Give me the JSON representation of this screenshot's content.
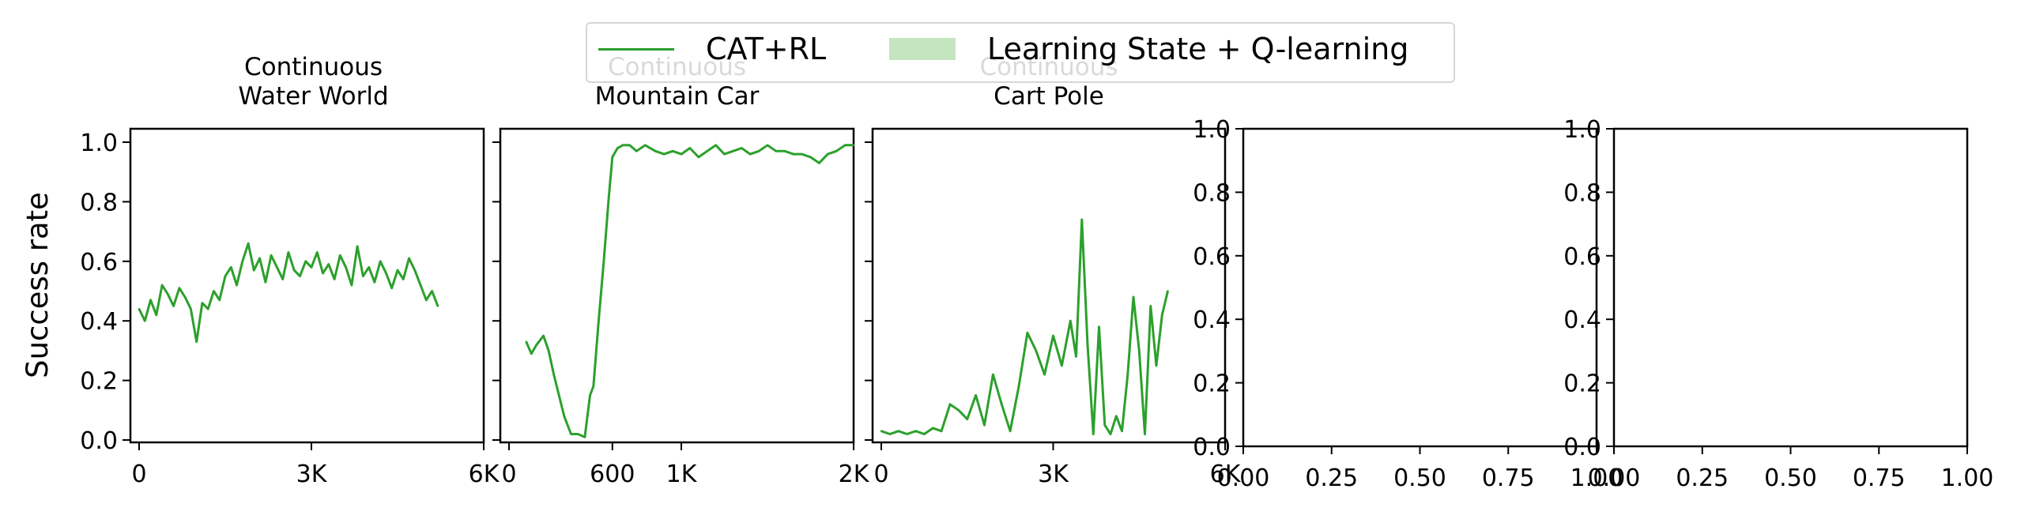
{
  "chart_data": [
    {
      "type": "line",
      "title": "Continuous\nWater World",
      "ylabel": "Success rate",
      "ylim": [
        0,
        1
      ],
      "yticks": [
        "0.0",
        "0.2",
        "0.4",
        "0.6",
        "0.8",
        "1.0"
      ],
      "xticks": [
        "0",
        "3K",
        "6K"
      ],
      "xlim": [
        0,
        6000
      ],
      "series": [
        {
          "name": "CAT+RL",
          "x": [
            0,
            100,
            200,
            300,
            400,
            500,
            600,
            700,
            800,
            900,
            1000,
            1100,
            1200,
            1300,
            1400,
            1500,
            1600,
            1700,
            1800,
            1900,
            2000,
            2100,
            2200,
            2300,
            2400,
            2500,
            2600,
            2700,
            2800,
            2900,
            3000,
            3100,
            3200,
            3300,
            3400,
            3500,
            3600,
            3700,
            3800,
            3900,
            4000,
            4100,
            4200,
            4300,
            4400,
            4500,
            4600,
            4700,
            4800,
            4900,
            5000,
            5100,
            5200
          ],
          "values": [
            0.44,
            0.4,
            0.47,
            0.42,
            0.52,
            0.49,
            0.45,
            0.51,
            0.48,
            0.44,
            0.33,
            0.46,
            0.44,
            0.5,
            0.47,
            0.55,
            0.58,
            0.52,
            0.6,
            0.66,
            0.57,
            0.61,
            0.53,
            0.62,
            0.58,
            0.54,
            0.63,
            0.57,
            0.55,
            0.6,
            0.58,
            0.63,
            0.56,
            0.59,
            0.54,
            0.62,
            0.58,
            0.52,
            0.65,
            0.55,
            0.58,
            0.53,
            0.6,
            0.56,
            0.51,
            0.57,
            0.54,
            0.61,
            0.57,
            0.52,
            0.47,
            0.5,
            0.45
          ]
        }
      ]
    },
    {
      "type": "line",
      "title": "Continuous\nMountain Car",
      "ylim": [
        0,
        1
      ],
      "yticks": [
        "0.0",
        "0.2",
        "0.4",
        "0.6",
        "0.8",
        "1.0"
      ],
      "xticks": [
        "0",
        "600",
        "1K",
        "2K"
      ],
      "xlim": [
        0,
        2000
      ],
      "series": [
        {
          "name": "CAT+RL",
          "x": [
            100,
            130,
            160,
            200,
            230,
            260,
            290,
            320,
            360,
            400,
            440,
            470,
            490,
            520,
            550,
            580,
            600,
            630,
            660,
            700,
            740,
            790,
            850,
            900,
            950,
            1000,
            1050,
            1100,
            1150,
            1200,
            1250,
            1300,
            1350,
            1400,
            1450,
            1500,
            1550,
            1600,
            1650,
            1700,
            1750,
            1800,
            1850,
            1900,
            1950,
            2000
          ],
          "values": [
            0.33,
            0.29,
            0.32,
            0.35,
            0.3,
            0.22,
            0.15,
            0.08,
            0.02,
            0.02,
            0.01,
            0.15,
            0.18,
            0.4,
            0.6,
            0.82,
            0.95,
            0.98,
            0.99,
            0.99,
            0.97,
            0.99,
            0.97,
            0.96,
            0.97,
            0.96,
            0.98,
            0.95,
            0.97,
            0.99,
            0.96,
            0.97,
            0.98,
            0.96,
            0.97,
            0.99,
            0.97,
            0.97,
            0.96,
            0.96,
            0.95,
            0.93,
            0.96,
            0.97,
            0.99,
            0.99
          ]
        }
      ]
    },
    {
      "type": "line",
      "title": "Continuous\nCart Pole",
      "ylim": [
        0,
        1
      ],
      "yticks": [
        "0.0",
        "0.2",
        "0.4",
        "0.6",
        "0.8",
        "1.0"
      ],
      "xticks": [
        "0",
        "3K",
        "6K"
      ],
      "xlim": [
        0,
        6000
      ],
      "series": [
        {
          "name": "CAT+RL",
          "x": [
            0,
            150,
            300,
            450,
            600,
            750,
            900,
            1050,
            1200,
            1350,
            1500,
            1650,
            1800,
            1950,
            2100,
            2250,
            2400,
            2550,
            2700,
            2850,
            3000,
            3150,
            3300,
            3400,
            3500,
            3600,
            3700,
            3800,
            3900,
            4000,
            4100,
            4200,
            4300,
            4400,
            4500,
            4600,
            4700,
            4800,
            4900,
            5000
          ],
          "values": [
            0.03,
            0.02,
            0.03,
            0.02,
            0.03,
            0.02,
            0.04,
            0.03,
            0.12,
            0.1,
            0.07,
            0.15,
            0.05,
            0.22,
            0.12,
            0.03,
            0.18,
            0.36,
            0.3,
            0.22,
            0.35,
            0.25,
            0.4,
            0.28,
            0.74,
            0.32,
            0.02,
            0.38,
            0.05,
            0.02,
            0.08,
            0.03,
            0.22,
            0.48,
            0.3,
            0.02,
            0.45,
            0.25,
            0.42,
            0.5
          ]
        }
      ]
    },
    {
      "type": "line",
      "ylim": [
        0,
        1
      ],
      "yticks": [
        "0.0",
        "0.2",
        "0.4",
        "0.6",
        "0.8",
        "1.0"
      ],
      "xticks": [
        "0.00",
        "0.25",
        "0.50",
        "0.75",
        "1.00"
      ],
      "xlim": [
        0,
        1
      ],
      "series": []
    },
    {
      "type": "line",
      "ylim": [
        0,
        1
      ],
      "yticks": [
        "0.0",
        "0.2",
        "0.4",
        "0.6",
        "0.8",
        "1.0"
      ],
      "xticks": [
        "0.00",
        "0.25",
        "0.50",
        "0.75",
        "1.00"
      ],
      "xlim": [
        0,
        1
      ],
      "series": []
    }
  ],
  "legend": {
    "entries": [
      {
        "label": "CAT+RL",
        "kind": "line",
        "color": "#2ca02c"
      },
      {
        "label": "Learning State + Q-learning",
        "kind": "patch",
        "color": "#c5e4c0"
      }
    ]
  },
  "colors": {
    "series": "#2ca02c"
  }
}
